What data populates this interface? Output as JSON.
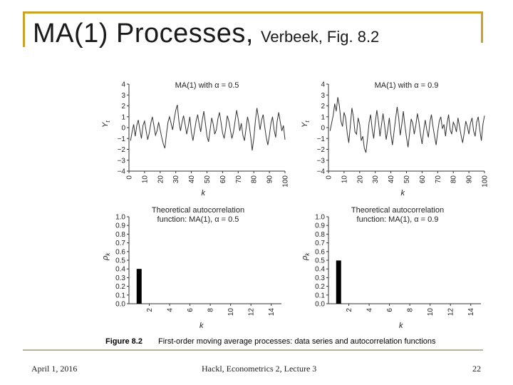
{
  "slide": {
    "title_main": "MA(1) Processes,",
    "title_sub": "Verbeek, Fig. 8.2",
    "footer_date": "April 1, 2016",
    "footer_center": "Hackl, Econometrics 2, Lecture 3",
    "footer_page": "22"
  },
  "figure": {
    "label": "Figure 8.2",
    "caption": "First-order moving average processes: data series and autocorrelation functions"
  },
  "chart_data": [
    {
      "type": "line",
      "title": "MA(1) with α = 0.5",
      "xlabel": "k",
      "ylabel": "Y",
      "ylabel_sub": "t",
      "xlim": [
        0,
        100
      ],
      "ylim": [
        -4,
        4
      ],
      "x_ticks": [
        0,
        10,
        20,
        30,
        40,
        50,
        60,
        70,
        80,
        90,
        100
      ],
      "y_ticks": [
        4,
        3,
        2,
        1,
        0,
        -1,
        -2,
        -3,
        -4
      ],
      "y_tick_labels": [
        "4",
        "3",
        "2",
        "1",
        "0",
        "−1",
        "−2",
        "−3",
        "−4"
      ],
      "x": [
        1,
        2,
        3,
        4,
        5,
        6,
        7,
        8,
        9,
        10,
        11,
        12,
        13,
        14,
        15,
        16,
        17,
        18,
        19,
        20,
        21,
        22,
        23,
        24,
        25,
        26,
        27,
        28,
        29,
        30,
        31,
        32,
        33,
        34,
        35,
        36,
        37,
        38,
        39,
        40,
        41,
        42,
        43,
        44,
        45,
        46,
        47,
        48,
        49,
        50,
        51,
        52,
        53,
        54,
        55,
        56,
        57,
        58,
        59,
        60,
        61,
        62,
        63,
        64,
        65,
        66,
        67,
        68,
        69,
        70,
        71,
        72,
        73,
        74,
        75,
        76,
        77,
        78,
        79,
        80,
        81,
        82,
        83,
        84,
        85,
        86,
        87,
        88,
        89,
        90,
        91,
        92,
        93,
        94,
        95,
        96,
        97,
        98,
        99,
        100
      ],
      "values": [
        -1.2,
        -0.4,
        0.3,
        -0.8,
        0.2,
        0.7,
        -0.2,
        -1.0,
        0.2,
        0.6,
        -0.3,
        -1.1,
        -0.5,
        0.4,
        1.0,
        0.2,
        -0.7,
        -0.3,
        0.5,
        -0.2,
        -0.9,
        -1.5,
        -1.9,
        -0.6,
        0.5,
        1.0,
        0.4,
        -0.2,
        0.8,
        1.6,
        2.1,
        0.6,
        -0.3,
        0.5,
        1.1,
        0.3,
        -0.6,
        0.1,
        1.0,
        -0.4,
        -1.2,
        -0.3,
        0.6,
        1.2,
        0.3,
        -0.4,
        0.7,
        1.5,
        0.4,
        -0.8,
        -1.3,
        -0.2,
        0.9,
        0.3,
        -0.6,
        -0.2,
        0.8,
        1.4,
        0.5,
        -0.5,
        -1.0,
        -0.1,
        1.1,
        0.6,
        -0.2,
        -1.0,
        -0.4,
        0.6,
        1.6,
        0.8,
        -0.3,
        0.4,
        -0.7,
        -1.2,
        -0.1,
        1.0,
        0.3,
        -0.8,
        -2.1,
        -1.0,
        0.6,
        1.8,
        0.9,
        -0.2,
        0.7,
        1.2,
        0.1,
        -0.9,
        -1.6,
        -0.7,
        0.4,
        1.0,
        -0.2,
        -0.9,
        0.6,
        1.4,
        0.5,
        -0.3,
        0.2,
        -1.1
      ]
    },
    {
      "type": "line",
      "title": "MA(1) with α = 0.9",
      "xlabel": "k",
      "ylabel": "Y",
      "ylabel_sub": "t",
      "xlim": [
        0,
        100
      ],
      "ylim": [
        -4,
        4
      ],
      "x_ticks": [
        0,
        10,
        20,
        30,
        40,
        50,
        60,
        70,
        80,
        90,
        100
      ],
      "y_ticks": [
        4,
        3,
        2,
        1,
        0,
        -1,
        -2,
        -3,
        -4
      ],
      "y_tick_labels": [
        "4",
        "3",
        "2",
        "1",
        "0",
        "−1",
        "−2",
        "−3",
        "−4"
      ],
      "x": [
        1,
        2,
        3,
        4,
        5,
        6,
        7,
        8,
        9,
        10,
        11,
        12,
        13,
        14,
        15,
        16,
        17,
        18,
        19,
        20,
        21,
        22,
        23,
        24,
        25,
        26,
        27,
        28,
        29,
        30,
        31,
        32,
        33,
        34,
        35,
        36,
        37,
        38,
        39,
        40,
        41,
        42,
        43,
        44,
        45,
        46,
        47,
        48,
        49,
        50,
        51,
        52,
        53,
        54,
        55,
        56,
        57,
        58,
        59,
        60,
        61,
        62,
        63,
        64,
        65,
        66,
        67,
        68,
        69,
        70,
        71,
        72,
        73,
        74,
        75,
        76,
        77,
        78,
        79,
        80,
        81,
        82,
        83,
        84,
        85,
        86,
        87,
        88,
        89,
        90,
        91,
        92,
        93,
        94,
        95,
        96,
        97,
        98,
        99,
        100
      ],
      "values": [
        -0.3,
        0.4,
        1.1,
        2.2,
        1.5,
        2.8,
        2.0,
        0.6,
        0.1,
        1.4,
        0.9,
        -0.5,
        -1.4,
        0.2,
        1.8,
        1.0,
        -0.4,
        -0.6,
        0.9,
        0.3,
        -1.2,
        -0.8,
        -1.9,
        -2.3,
        -1.0,
        0.4,
        1.2,
        -0.1,
        -1.0,
        0.5,
        1.6,
        0.6,
        -0.8,
        0.3,
        1.3,
        0.2,
        -1.1,
        -0.2,
        0.9,
        -0.6,
        -1.6,
        -0.4,
        0.8,
        1.9,
        0.9,
        -0.7,
        0.3,
        1.5,
        0.2,
        -0.9,
        -1.8,
        -0.5,
        0.8,
        0.4,
        -0.6,
        0.2,
        1.3,
        0.5,
        -0.6,
        -1.5,
        -0.3,
        0.7,
        -0.2,
        -0.9,
        0.5,
        1.2,
        0.1,
        -0.8,
        -1.6,
        -0.4,
        0.6,
        1.0,
        -0.1,
        0.3,
        -0.8,
        0.4,
        1.2,
        -0.2,
        -0.6,
        0.5,
        0.2,
        -0.4,
        0.9,
        0.1,
        -0.7,
        -1.4,
        -0.5,
        0.6,
        0.1,
        -0.6,
        0.4,
        0.9,
        -0.3,
        -0.8,
        0.5,
        1.0,
        -0.2,
        -1.2,
        0.3,
        1.1
      ]
    },
    {
      "type": "bar",
      "title_line1": "Theoretical autocorrelation",
      "title_line2": "function: MA(1), α = 0.5",
      "xlabel": "k",
      "ylabel": "ρ",
      "ylabel_sub": "k",
      "xlim": [
        0,
        15
      ],
      "ylim": [
        0,
        1.0
      ],
      "x_ticks": [
        2,
        4,
        6,
        8,
        10,
        12,
        14
      ],
      "y_ticks": [
        1.0,
        0.9,
        0.8,
        0.7,
        0.6,
        0.5,
        0.4,
        0.3,
        0.2,
        0.1,
        0.0
      ],
      "y_tick_labels": [
        "1.0",
        "0.9",
        "0.8",
        "0.7",
        "0.6",
        "0.5",
        "0.4",
        "0.3",
        "0.2",
        "0.1",
        "0.0"
      ],
      "categories": [
        1,
        2,
        3,
        4,
        5,
        6,
        7,
        8,
        9,
        10,
        11,
        12,
        13,
        14,
        15
      ],
      "values": [
        0.4,
        0,
        0,
        0,
        0,
        0,
        0,
        0,
        0,
        0,
        0,
        0,
        0,
        0,
        0
      ]
    },
    {
      "type": "bar",
      "title_line1": "Theoretical autocorrelation",
      "title_line2": "function: MA(1), α = 0.9",
      "xlabel": "k",
      "ylabel": "ρ",
      "ylabel_sub": "k",
      "xlim": [
        0,
        15
      ],
      "ylim": [
        0,
        1.0
      ],
      "x_ticks": [
        2,
        4,
        6,
        8,
        10,
        12,
        14
      ],
      "y_ticks": [
        1.0,
        0.9,
        0.8,
        0.7,
        0.6,
        0.5,
        0.4,
        0.3,
        0.2,
        0.1,
        0.0
      ],
      "y_tick_labels": [
        "1.0",
        "0.9",
        "0.8",
        "0.7",
        "0.6",
        "0.5",
        "0.4",
        "0.3",
        "0.2",
        "0.1",
        "0.0"
      ],
      "categories": [
        1,
        2,
        3,
        4,
        5,
        6,
        7,
        8,
        9,
        10,
        11,
        12,
        13,
        14,
        15
      ],
      "values": [
        0.497,
        0,
        0,
        0,
        0,
        0,
        0,
        0,
        0,
        0,
        0,
        0,
        0,
        0,
        0
      ]
    }
  ]
}
